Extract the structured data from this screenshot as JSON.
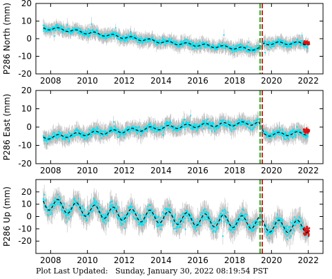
{
  "footer": {
    "label": "Plot Last Updated:",
    "timestamp": "Sunday, January 30, 2022 08:19:54 PST"
  },
  "colors": {
    "errorbar": "#bdbdbd",
    "points": "#00e5f5",
    "recent_points": "#dd1111",
    "model_line": "#000000",
    "event_green": "#22aa22",
    "event_red": "#dd2222",
    "frame": "#000000"
  },
  "chart_data": [
    {
      "type": "scatter",
      "ylabel": "P286 North (mm)",
      "xlim": [
        2007.2,
        2022.8
      ],
      "ylim": [
        -20,
        20
      ],
      "xticks": [
        2008,
        2010,
        2012,
        2014,
        2016,
        2018,
        2020,
        2022
      ],
      "yticks": [
        -20,
        -10,
        0,
        10,
        20
      ],
      "events": [
        {
          "x": 2019.38,
          "color": "green",
          "style": "dashed"
        },
        {
          "x": 2019.5,
          "color": "red",
          "style": "dashed"
        }
      ],
      "model_trend": {
        "x": [
          2007.6,
          2008.5,
          2009.5,
          2010.5,
          2011.5,
          2012.5,
          2013.5,
          2014.5,
          2015.5,
          2016.5,
          2017.5,
          2018.5,
          2019.3,
          2019.6,
          2020.5,
          2021.5,
          2022.0
        ],
        "y": [
          6.0,
          5.4,
          4.1,
          2.8,
          1.5,
          0.2,
          -1.1,
          -2.3,
          -3.2,
          -4.0,
          -4.8,
          -5.6,
          -6.0,
          -2.8,
          -2.6,
          -2.6,
          -2.8
        ]
      },
      "seasonal_amplitude": 0.8,
      "scatter_sd": 1.2,
      "error_halfwidth": 3.0,
      "recent_points": {
        "x_from": 2021.75,
        "x_to": 2022.05,
        "y": -2.5
      }
    },
    {
      "type": "scatter",
      "ylabel": "P286 East (mm)",
      "xlim": [
        2007.2,
        2022.8
      ],
      "ylim": [
        -20,
        20
      ],
      "xticks": [
        2008,
        2010,
        2012,
        2014,
        2016,
        2018,
        2020,
        2022
      ],
      "yticks": [
        -20,
        -10,
        0,
        10,
        20
      ],
      "events": [
        {
          "x": 2019.38,
          "color": "green",
          "style": "dashed"
        },
        {
          "x": 2019.5,
          "color": "red",
          "style": "dashed"
        }
      ],
      "model_trend": {
        "x": [
          2007.6,
          2008.5,
          2009.5,
          2010.5,
          2011.5,
          2012.5,
          2013.5,
          2014.5,
          2015.5,
          2016.5,
          2017.5,
          2018.5,
          2019.3,
          2019.6,
          2020.5,
          2021.5,
          2022.0
        ],
        "y": [
          -5.8,
          -5.0,
          -4.0,
          -3.2,
          -2.4,
          -1.6,
          -0.8,
          0.0,
          0.6,
          1.1,
          1.5,
          1.9,
          2.2,
          -4.0,
          -3.8,
          -3.5,
          -3.2
        ]
      },
      "seasonal_amplitude": 1.0,
      "scatter_sd": 1.4,
      "error_halfwidth": 3.5,
      "recent_points": {
        "x_from": 2021.75,
        "x_to": 2022.05,
        "y": -2.0
      }
    },
    {
      "type": "scatter",
      "ylabel": "P286 Up (mm)",
      "xlim": [
        2007.2,
        2022.8
      ],
      "ylim": [
        -30,
        30
      ],
      "xticks": [
        2008,
        2010,
        2012,
        2014,
        2016,
        2018,
        2020,
        2022
      ],
      "yticks": [
        -20,
        -10,
        0,
        10,
        20
      ],
      "events": [
        {
          "x": 2019.38,
          "color": "green",
          "style": "dashed"
        },
        {
          "x": 2019.5,
          "color": "red",
          "style": "dashed"
        }
      ],
      "model_trend": {
        "x": [
          2007.6,
          2008.5,
          2009.5,
          2010.5,
          2011.5,
          2012.5,
          2013.5,
          2014.5,
          2015.5,
          2016.5,
          2017.5,
          2018.5,
          2019.3,
          2019.6,
          2020.5,
          2021.5,
          2022.0
        ],
        "y": [
          11.0,
          8.5,
          6.0,
          4.0,
          2.5,
          1.0,
          0.0,
          -1.0,
          -2.0,
          -3.0,
          -3.8,
          -4.5,
          -5.0,
          -7.5,
          -8.0,
          -8.0,
          -8.0
        ]
      },
      "seasonal_amplitude": 5.0,
      "scatter_sd": 3.5,
      "error_halfwidth": 7.0,
      "recent_points": {
        "x_from": 2021.75,
        "x_to": 2022.05,
        "y": -12.0
      }
    }
  ]
}
